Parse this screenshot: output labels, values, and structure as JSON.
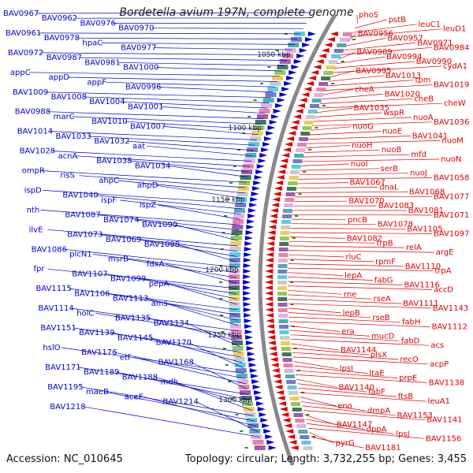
{
  "title": "Bordetella avium 197N, complete genome",
  "accession": "Accession: NC_010645",
  "summary": "Topology: circular; Length: 3,732,255 bp; Genes: 3,455",
  "colors": {
    "left_genes": "#0000cc",
    "right_genes": "#dd0000",
    "backbone": "#888888",
    "tick": "#2a8a2a"
  },
  "scale_labels": [
    "1050 kbp",
    "1100 kbp",
    "1150 kbp",
    "1200 kbp",
    "1250 kbp",
    "1300 kbp"
  ],
  "left_labels": [
    "BAV0967",
    "BAV0962",
    "BAV0976",
    "BAV0970",
    "BAV0961",
    "BAV0978",
    "hpaC",
    "BAV0977",
    "BAV0972",
    "BAV0987",
    "BAV0981",
    "BAV1000",
    "appC",
    "appD",
    "appF",
    "BAV0996",
    "BAV1009",
    "BAV1008",
    "BAV1004",
    "BAV1001",
    "BAV0988",
    "marC",
    "BAV1010",
    "BAV1007",
    "BAV1014",
    "BAV1033",
    "BAV1032",
    "aat",
    "BAV1028",
    "acnA",
    "BAV1038",
    "BAV1034",
    "ompR",
    "risS",
    "ahpC",
    "ahpD",
    "ispD",
    "BAV1040",
    "ispF",
    "ispZ",
    "nth",
    "BAV1087",
    "BAV1074",
    "BAV1090",
    "ilvE",
    "BAV1073",
    "BAV1069",
    "BAV1098",
    "BAV1086",
    "plcN1",
    "msrB",
    "fdxA",
    "fpr",
    "BAV1107",
    "BAV1099",
    "pepA",
    "BAV1115",
    "BAV1106",
    "BAV1113",
    "ams",
    "BAV1114",
    "holC",
    "BAV1135",
    "BAV1134",
    "BAV1151",
    "BAV1139",
    "BAV1145",
    "BAV1170",
    "hslO",
    "BAV1176",
    "etf",
    "BAV1168",
    "BAV1171",
    "BAV1189",
    "BAV1188",
    "mdh",
    "BAV1195",
    "maeB",
    "aceE",
    "BAV1214",
    "BAV1218"
  ],
  "right_labels": [
    "phoS",
    "pstB",
    "leuC1",
    "leuD1",
    "BAV0956",
    "BAV0957",
    "BAV0971",
    "BAV0984",
    "BAV0989",
    "BAV0994",
    "BAV0990",
    "cydA1",
    "BAV0995",
    "BAV1013",
    "tpm",
    "BAV1019",
    "cheA",
    "BAV1020",
    "cheB",
    "cheW",
    "BAV1035",
    "wspR",
    "nuoA",
    "BAV1036",
    "nuoG",
    "nuoE",
    "BAV1041",
    "nuoM",
    "nuoH",
    "nuoB",
    "mfd",
    "nuoN",
    "nuoI",
    "serB",
    "nuoJ",
    "BAV1058",
    "BAV1067",
    "dnaL",
    "BAV1068",
    "BAV1077",
    "BAV1070",
    "BAV1083",
    "BAV1081",
    "BAV1071",
    "pncB",
    "BAV1078",
    "BAV1105",
    "BAV1097",
    "BAV1082",
    "trpB",
    "relA",
    "argE",
    "rluC",
    "rpmF",
    "BAV1110",
    "trpA",
    "lepA",
    "fabG",
    "BAV1116",
    "accD",
    "rne",
    "rseA",
    "BAV1111",
    "BAV1143",
    "lepB",
    "rseB",
    "fabH",
    "BAV1112",
    "era",
    "mucD",
    "fabD",
    "acs",
    "BAV1144",
    "plsX",
    "recO",
    "acpP",
    "lpsI",
    "ltaE",
    "prpE",
    "BAV1138",
    "BAV1140",
    "fabF",
    "ftsB",
    "leuA1",
    "eno",
    "dmpA",
    "BAV1153",
    "BAV1141",
    "BAV1147",
    "dppA",
    "lpsJ",
    "BAV1156",
    "pyrG",
    "BAV1181"
  ]
}
